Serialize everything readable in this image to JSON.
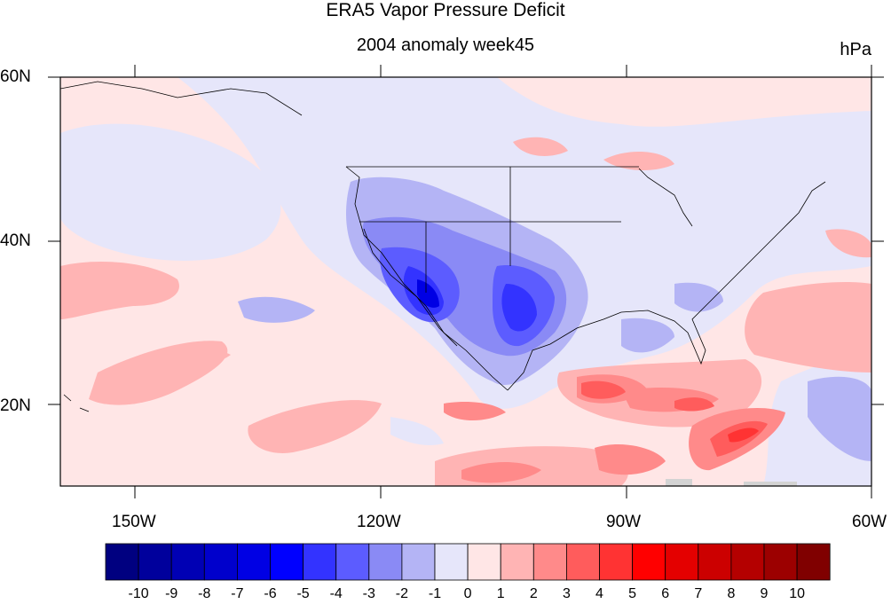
{
  "title": "ERA5 Vapor Pressure Deficit",
  "subtitle": "2004 anomaly week45",
  "units": "hPa",
  "map": {
    "projection": "cylindrical equidistant",
    "lon_range": [
      -159,
      -60
    ],
    "lat_range": [
      10,
      60
    ],
    "lat_labels": [
      "60N",
      "40N",
      "20N"
    ],
    "lon_labels": [
      "150W",
      "120W",
      "90W",
      "60W"
    ]
  },
  "colorbar": {
    "labels": [
      "-10",
      "-9",
      "-8",
      "-7",
      "-6",
      "-5",
      "-4",
      "-3",
      "-2",
      "-1",
      "0",
      "1",
      "2",
      "3",
      "4",
      "5",
      "6",
      "7",
      "8",
      "9",
      "10"
    ],
    "colors": [
      "#000080",
      "#00009c",
      "#0000b4",
      "#0000cc",
      "#0000e4",
      "#0000ff",
      "#3333ff",
      "#5c5cff",
      "#8a8af5",
      "#b4b4f5",
      "#e6e6fa",
      "#ffe6e6",
      "#ffb4b4",
      "#ff8a8a",
      "#ff5c5c",
      "#ff3333",
      "#ff0000",
      "#e40000",
      "#cc0000",
      "#b40000",
      "#9c0000",
      "#800000"
    ]
  }
}
